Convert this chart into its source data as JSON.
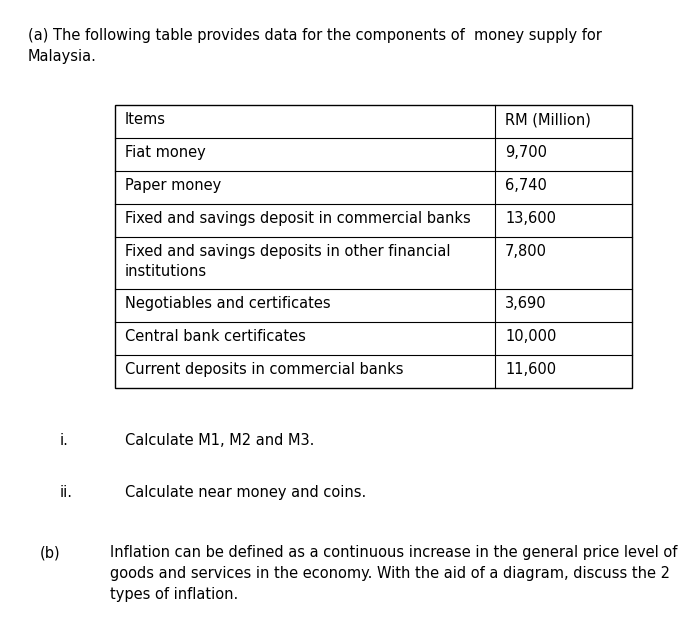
{
  "title_a": "(a) The following table provides data for the components of  money supply for\nMalaysia.",
  "table_headers": [
    "Items",
    "RM (Million)"
  ],
  "table_rows": [
    [
      "Fiat money",
      "9,700"
    ],
    [
      "Paper money",
      "6,740"
    ],
    [
      "Fixed and savings deposit in commercial banks",
      "13,600"
    ],
    [
      "Fixed and savings deposits in other financial\ninstitutions",
      "7,800"
    ],
    [
      "Negotiables and certificates",
      "3,690"
    ],
    [
      "Central bank certificates",
      "10,000"
    ],
    [
      "Current deposits in commercial banks",
      "11,600"
    ]
  ],
  "question_i_label": "i.",
  "question_i_text": "Calculate M1, M2 and M3.",
  "question_ii_label": "ii.",
  "question_ii_text": "Calculate near money and coins.",
  "question_b_label": "(b)",
  "question_b_text": "Inflation can be defined as a continuous increase in the general price level of\ngoods and services in the economy. With the aid of a diagram, discuss the 2\ntypes of inflation.",
  "font_size": 10.5,
  "bg_color": "#ffffff",
  "text_color": "#000000"
}
